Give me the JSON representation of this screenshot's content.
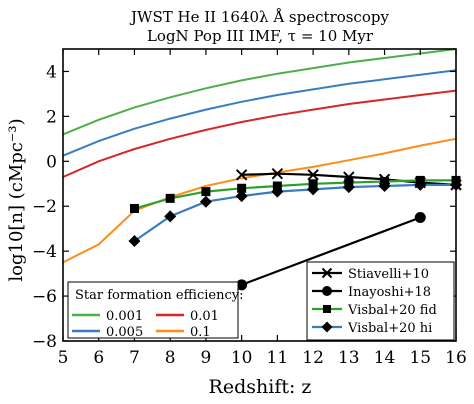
{
  "chart_data": {
    "type": "line",
    "title": "JWST He II 1640λ Å spectroscopy",
    "subtitle": "LogN Pop III IMF, τ = 10 Myr",
    "xlabel": "Redshift: z",
    "ylabel": "log10[n] (cMpc⁻³)",
    "xlim": [
      5,
      16
    ],
    "ylim": [
      -8,
      5
    ],
    "xticks": [
      "5",
      "6",
      "7",
      "8",
      "9",
      "10",
      "11",
      "12",
      "13",
      "14",
      "15",
      "16"
    ],
    "yticks": [
      "−8",
      "−6",
      "−4",
      "−2",
      "0",
      "2",
      "4"
    ],
    "xtick_values": [
      5,
      6,
      7,
      8,
      9,
      10,
      11,
      12,
      13,
      14,
      15,
      16
    ],
    "ytick_values": [
      -8,
      -6,
      -4,
      -2,
      0,
      2,
      4
    ],
    "grid": false,
    "efficiency_legend": {
      "title": "Star formation efficiency:",
      "placement": "bottom-left"
    },
    "markers_legend": {
      "placement": "bottom-right"
    },
    "efficiency_series": [
      {
        "name": "0.001",
        "color": "#4daf4a",
        "x": [
          5,
          6,
          7,
          8,
          9,
          10,
          11,
          12,
          13,
          14,
          15,
          16
        ],
        "y": [
          1.2,
          1.85,
          2.4,
          2.85,
          3.25,
          3.6,
          3.9,
          4.15,
          4.4,
          4.6,
          4.8,
          5.0
        ]
      },
      {
        "name": "0.01",
        "color": "#d62728",
        "x": [
          5,
          6,
          7,
          8,
          9,
          10,
          11,
          12,
          13,
          14,
          15,
          16
        ],
        "y": [
          -0.7,
          0.0,
          0.55,
          1.0,
          1.4,
          1.75,
          2.05,
          2.3,
          2.55,
          2.75,
          2.95,
          3.15
        ]
      },
      {
        "name": "0.005",
        "color": "#3a7dbf",
        "x": [
          5,
          6,
          7,
          8,
          9,
          10,
          11,
          12,
          13,
          14,
          15,
          16
        ],
        "y": [
          0.25,
          0.9,
          1.45,
          1.9,
          2.3,
          2.65,
          2.95,
          3.2,
          3.45,
          3.65,
          3.85,
          4.05
        ]
      },
      {
        "name": "0.1",
        "color": "#ff8c1a",
        "x": [
          5,
          6,
          7,
          8,
          9,
          10,
          11,
          12,
          13,
          14,
          15,
          16
        ],
        "y": [
          -4.5,
          -3.7,
          -2.2,
          -1.6,
          -1.1,
          -0.75,
          -0.5,
          -0.25,
          0.05,
          0.35,
          0.7,
          1.0
        ]
      }
    ],
    "marker_series": [
      {
        "name": "Stiavelli+10",
        "marker": "x",
        "color": "#000000",
        "x": [
          10,
          11,
          12,
          13,
          14,
          15,
          16
        ],
        "y": [
          -0.6,
          -0.55,
          -0.6,
          -0.7,
          -0.8,
          -0.95,
          -1.05
        ]
      },
      {
        "name": "Inayoshi+18",
        "marker": "circle",
        "color": "#000000",
        "x": [
          10,
          15
        ],
        "y": [
          -5.5,
          -2.5
        ]
      },
      {
        "name": "Visbal+20 fid",
        "marker": "square",
        "color": "#2ca02c",
        "x": [
          7,
          8,
          9,
          10,
          11,
          12,
          13,
          14,
          15,
          16
        ],
        "y": [
          -2.1,
          -1.65,
          -1.35,
          -1.2,
          -1.1,
          -1.0,
          -0.95,
          -0.9,
          -0.85,
          -0.85
        ]
      },
      {
        "name": "Visbal+20 hi",
        "marker": "diamond",
        "color": "#3a7dbf",
        "x": [
          7,
          8,
          9,
          10,
          11,
          12,
          13,
          14,
          15,
          16
        ],
        "y": [
          -3.55,
          -2.45,
          -1.8,
          -1.55,
          -1.35,
          -1.25,
          -1.15,
          -1.1,
          -1.05,
          -1.05
        ]
      }
    ]
  }
}
